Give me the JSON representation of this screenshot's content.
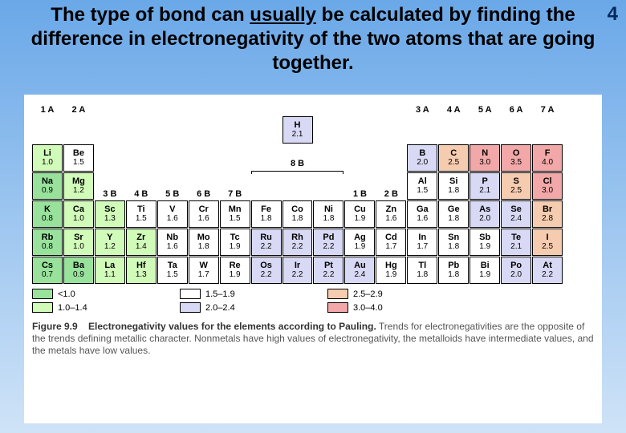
{
  "page_number": "4",
  "title_parts": {
    "pre": "The type of bond can ",
    "ul": "usually",
    "post": " be calculated by finding the difference in electronegativity of the two atoms that are going together."
  },
  "colors": {
    "bg_top": "#6aa8e8",
    "bg_bot": "#cfe3f7",
    "band0": "#98e29c",
    "band1": "#d1fbb9",
    "band2": "#ffffff",
    "band3": "#d8d9f4",
    "band4": "#f6ccb0",
    "band5": "#f2a8a8"
  },
  "groups_row1": [
    "1 A",
    "2 A"
  ],
  "groups_row1_right": [
    "3 A",
    "4 A",
    "5 A",
    "6 A",
    "7 A"
  ],
  "groups_row3_mid": [
    "3 B",
    "4 B",
    "5 B",
    "6 B",
    "7 B"
  ],
  "groups_row3_right": [
    "1 B",
    "2 B"
  ],
  "label_8B": "8 B",
  "h_cell": {
    "sym": "H",
    "en": "2.1",
    "band": 3
  },
  "rows": [
    [
      {
        "sym": "Li",
        "en": "1.0",
        "band": 1
      },
      {
        "sym": "Be",
        "en": "1.5",
        "band": 2
      },
      null,
      null,
      null,
      null,
      null,
      null,
      null,
      null,
      null,
      null,
      {
        "sym": "B",
        "en": "2.0",
        "band": 3
      },
      {
        "sym": "C",
        "en": "2.5",
        "band": 4
      },
      {
        "sym": "N",
        "en": "3.0",
        "band": 5
      },
      {
        "sym": "O",
        "en": "3.5",
        "band": 5
      },
      {
        "sym": "F",
        "en": "4.0",
        "band": 5
      }
    ],
    [
      {
        "sym": "Na",
        "en": "0.9",
        "band": 0
      },
      {
        "sym": "Mg",
        "en": "1.2",
        "band": 1
      },
      null,
      null,
      null,
      null,
      null,
      null,
      null,
      null,
      null,
      null,
      {
        "sym": "Al",
        "en": "1.5",
        "band": 2
      },
      {
        "sym": "Si",
        "en": "1.8",
        "band": 2
      },
      {
        "sym": "P",
        "en": "2.1",
        "band": 3
      },
      {
        "sym": "S",
        "en": "2.5",
        "band": 4
      },
      {
        "sym": "Cl",
        "en": "3.0",
        "band": 5
      }
    ],
    [
      {
        "sym": "K",
        "en": "0.8",
        "band": 0
      },
      {
        "sym": "Ca",
        "en": "1.0",
        "band": 1
      },
      {
        "sym": "Sc",
        "en": "1.3",
        "band": 1
      },
      {
        "sym": "Ti",
        "en": "1.5",
        "band": 2
      },
      {
        "sym": "V",
        "en": "1.6",
        "band": 2
      },
      {
        "sym": "Cr",
        "en": "1.6",
        "band": 2
      },
      {
        "sym": "Mn",
        "en": "1.5",
        "band": 2
      },
      {
        "sym": "Fe",
        "en": "1.8",
        "band": 2
      },
      {
        "sym": "Co",
        "en": "1.8",
        "band": 2
      },
      {
        "sym": "Ni",
        "en": "1.8",
        "band": 2
      },
      {
        "sym": "Cu",
        "en": "1.9",
        "band": 2
      },
      {
        "sym": "Zn",
        "en": "1.6",
        "band": 2
      },
      {
        "sym": "Ga",
        "en": "1.6",
        "band": 2
      },
      {
        "sym": "Ge",
        "en": "1.8",
        "band": 2
      },
      {
        "sym": "As",
        "en": "2.0",
        "band": 3
      },
      {
        "sym": "Se",
        "en": "2.4",
        "band": 3
      },
      {
        "sym": "Br",
        "en": "2.8",
        "band": 4
      }
    ],
    [
      {
        "sym": "Rb",
        "en": "0.8",
        "band": 0
      },
      {
        "sym": "Sr",
        "en": "1.0",
        "band": 1
      },
      {
        "sym": "Y",
        "en": "1.2",
        "band": 1
      },
      {
        "sym": "Zr",
        "en": "1.4",
        "band": 1
      },
      {
        "sym": "Nb",
        "en": "1.6",
        "band": 2
      },
      {
        "sym": "Mo",
        "en": "1.8",
        "band": 2
      },
      {
        "sym": "Tc",
        "en": "1.9",
        "band": 2
      },
      {
        "sym": "Ru",
        "en": "2.2",
        "band": 3
      },
      {
        "sym": "Rh",
        "en": "2.2",
        "band": 3
      },
      {
        "sym": "Pd",
        "en": "2.2",
        "band": 3
      },
      {
        "sym": "Ag",
        "en": "1.9",
        "band": 2
      },
      {
        "sym": "Cd",
        "en": "1.7",
        "band": 2
      },
      {
        "sym": "In",
        "en": "1.7",
        "band": 2
      },
      {
        "sym": "Sn",
        "en": "1.8",
        "band": 2
      },
      {
        "sym": "Sb",
        "en": "1.9",
        "band": 2
      },
      {
        "sym": "Te",
        "en": "2.1",
        "band": 3
      },
      {
        "sym": "I",
        "en": "2.5",
        "band": 4
      }
    ],
    [
      {
        "sym": "Cs",
        "en": "0.7",
        "band": 0
      },
      {
        "sym": "Ba",
        "en": "0.9",
        "band": 0
      },
      {
        "sym": "La",
        "en": "1.1",
        "band": 1
      },
      {
        "sym": "Hf",
        "en": "1.3",
        "band": 1
      },
      {
        "sym": "Ta",
        "en": "1.5",
        "band": 2
      },
      {
        "sym": "W",
        "en": "1.7",
        "band": 2
      },
      {
        "sym": "Re",
        "en": "1.9",
        "band": 2
      },
      {
        "sym": "Os",
        "en": "2.2",
        "band": 3
      },
      {
        "sym": "Ir",
        "en": "2.2",
        "band": 3
      },
      {
        "sym": "Pt",
        "en": "2.2",
        "band": 3
      },
      {
        "sym": "Au",
        "en": "2.4",
        "band": 3
      },
      {
        "sym": "Hg",
        "en": "1.9",
        "band": 2
      },
      {
        "sym": "Tl",
        "en": "1.8",
        "band": 2
      },
      {
        "sym": "Pb",
        "en": "1.8",
        "band": 2
      },
      {
        "sym": "Bi",
        "en": "1.9",
        "band": 2
      },
      {
        "sym": "Po",
        "en": "2.0",
        "band": 3
      },
      {
        "sym": "At",
        "en": "2.2",
        "band": 3
      }
    ]
  ],
  "legend": [
    {
      "band": 0,
      "label": "<1.0"
    },
    {
      "band": 1,
      "label": "1.0–1.4"
    },
    {
      "band": 2,
      "label": "1.5–1.9"
    },
    {
      "band": 3,
      "label": "2.0–2.4"
    },
    {
      "band": 4,
      "label": "2.5–2.9"
    },
    {
      "band": 5,
      "label": "3.0–4.0"
    }
  ],
  "figure": {
    "num": "Figure 9.9",
    "title": "Electronegativity values for the elements according to Pauling.",
    "text": "Trends for electronegativities are the opposite of the trends defining metallic character. Nonmetals have high values of electronegativity, the metalloids have intermediate values, and the metals have low values."
  }
}
